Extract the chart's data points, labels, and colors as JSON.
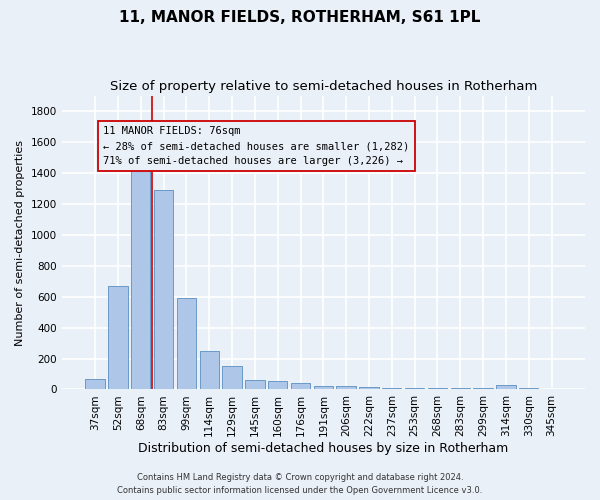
{
  "title": "11, MANOR FIELDS, ROTHERHAM, S61 1PL",
  "subtitle": "Size of property relative to semi-detached houses in Rotherham",
  "xlabel": "Distribution of semi-detached houses by size in Rotherham",
  "ylabel": "Number of semi-detached properties",
  "categories": [
    "37sqm",
    "52sqm",
    "68sqm",
    "83sqm",
    "99sqm",
    "114sqm",
    "129sqm",
    "145sqm",
    "160sqm",
    "176sqm",
    "191sqm",
    "206sqm",
    "222sqm",
    "237sqm",
    "253sqm",
    "268sqm",
    "283sqm",
    "299sqm",
    "314sqm",
    "330sqm",
    "345sqm"
  ],
  "values": [
    65,
    670,
    1450,
    1290,
    590,
    250,
    150,
    60,
    55,
    40,
    25,
    20,
    18,
    12,
    10,
    10,
    10,
    10,
    30,
    10,
    5
  ],
  "bar_color": "#aec6e8",
  "bar_edge_color": "#5a8fc2",
  "vline_x": 2.5,
  "vline_color": "#cc0000",
  "annotation_title": "11 MANOR FIELDS: 76sqm",
  "annotation_line1": "← 28% of semi-detached houses are smaller (1,282)",
  "annotation_line2": "71% of semi-detached houses are larger (3,226) →",
  "annotation_box_color": "#cc0000",
  "ylim": [
    0,
    1900
  ],
  "yticks": [
    0,
    200,
    400,
    600,
    800,
    1000,
    1200,
    1400,
    1600,
    1800
  ],
  "footer1": "Contains HM Land Registry data © Crown copyright and database right 2024.",
  "footer2": "Contains public sector information licensed under the Open Government Licence v3.0.",
  "bg_color": "#eaf0f8",
  "grid_color": "#ffffff",
  "title_fontsize": 11,
  "subtitle_fontsize": 9.5,
  "tick_fontsize": 7.5,
  "ylabel_fontsize": 8,
  "xlabel_fontsize": 9,
  "annotation_fontsize": 7.5,
  "footer_fontsize": 6
}
